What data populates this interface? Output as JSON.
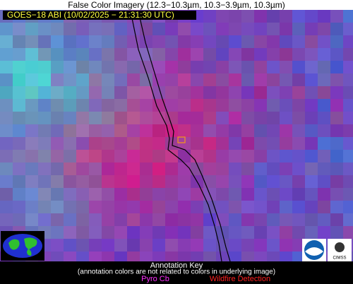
{
  "header": {
    "title": "False Color Imagery (12.3−10.3µm, 10.3−3.9µm, 10.3µm)"
  },
  "image": {
    "overlay_label": "GOES−18 ABI (10/02/2025 − 21:31:30 UTC)"
  },
  "logos": {
    "cimss": "CIMSS"
  },
  "annotation_key": {
    "title": "Annotation Key",
    "note": "(annotation colors are not related to colors in underlying image)",
    "items": [
      "Pyro Cb",
      "Wildfire Detection"
    ]
  }
}
